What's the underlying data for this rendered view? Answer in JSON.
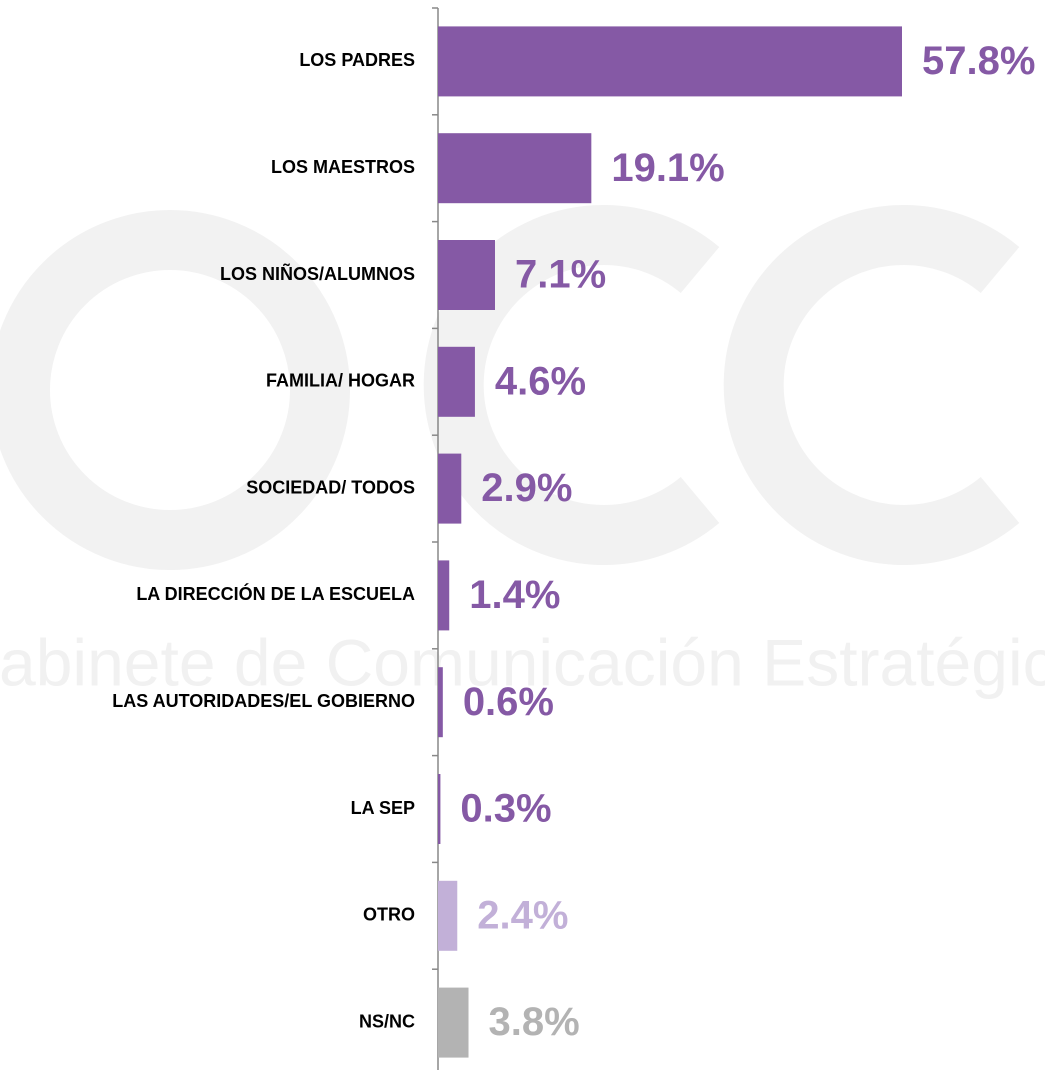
{
  "chart_data": {
    "type": "bar",
    "orientation": "horizontal",
    "watermark": "Gabinete de Comunicación Estratégica",
    "categories": [
      "LOS PADRES",
      "LOS MAESTROS",
      "LOS NIÑOS/ALUMNOS",
      "FAMILIA/ HOGAR",
      "SOCIEDAD/ TODOS",
      "LA DIRECCIÓN DE LA ESCUELA",
      "LAS AUTORIDADES/EL GOBIERNO",
      "LA SEP",
      "OTRO",
      "NS/NC"
    ],
    "values": [
      57.8,
      19.1,
      7.1,
      4.6,
      2.9,
      1.4,
      0.6,
      0.3,
      2.4,
      3.8
    ],
    "value_labels": [
      "57.8%",
      "19.1%",
      "7.1%",
      "4.6%",
      "2.9%",
      "1.4%",
      "0.6%",
      "0.3%",
      "2.4%",
      "3.8%"
    ],
    "colors": [
      "#8559a5",
      "#8559a5",
      "#8559a5",
      "#8559a5",
      "#8559a5",
      "#8559a5",
      "#8559a5",
      "#8559a5",
      "#c2b0d8",
      "#b3b3b3"
    ]
  }
}
